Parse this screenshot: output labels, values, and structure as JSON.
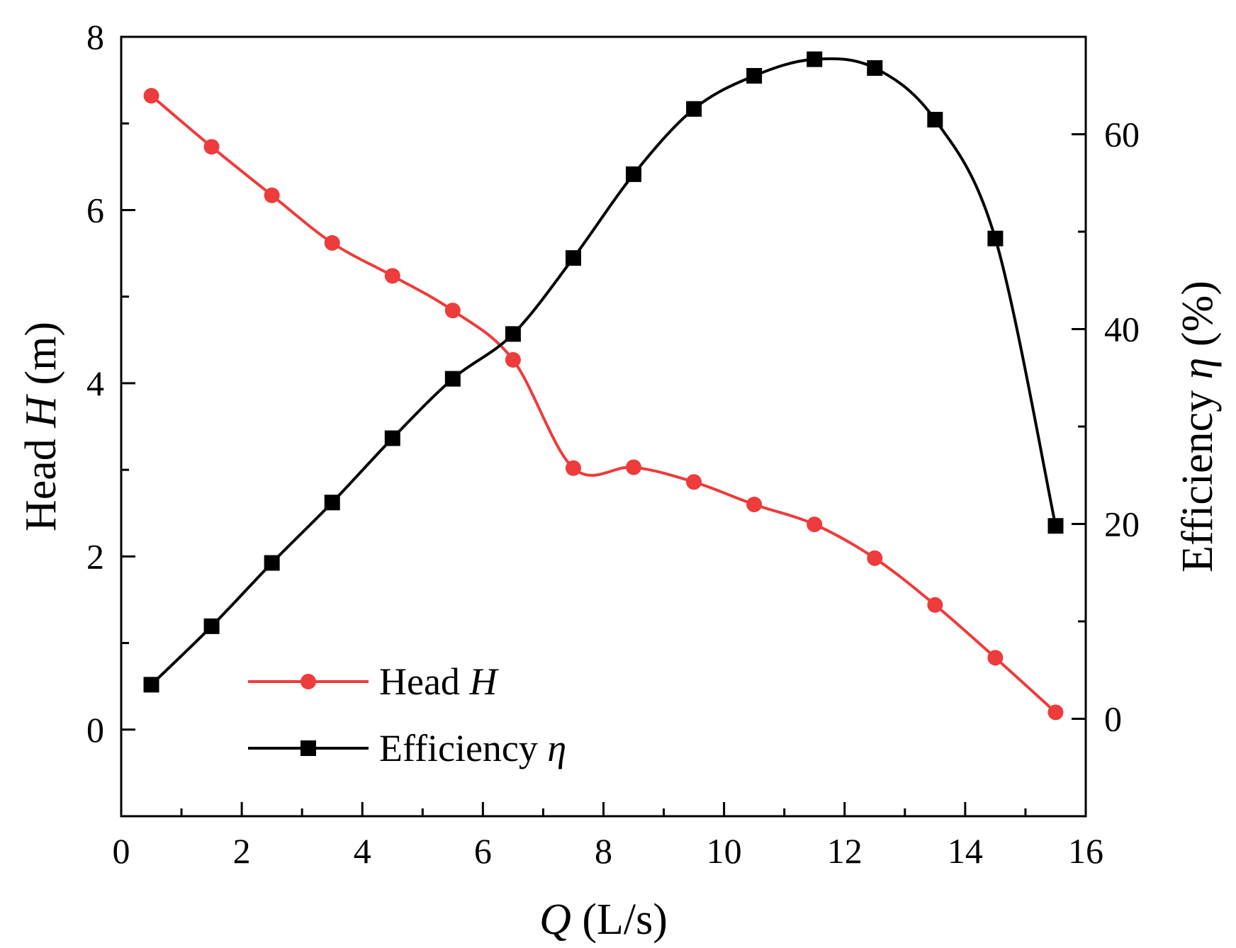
{
  "chart_data": {
    "type": "line",
    "title": "",
    "xlabel": {
      "var": "Q",
      "unit": "(L/s)"
    },
    "ylabel_left": {
      "name": "Head",
      "var": "H",
      "unit": "(m)"
    },
    "ylabel_right": {
      "name": "Efficiency",
      "var": "η",
      "unit": "(%)"
    },
    "xlim": [
      0,
      16
    ],
    "ylim_left": [
      -1,
      8
    ],
    "ylim_right": [
      -10,
      70
    ],
    "x_ticks": [
      0,
      2,
      4,
      6,
      8,
      10,
      12,
      14,
      16
    ],
    "x_tick_labels": [
      "0",
      "2",
      "4",
      "6",
      "8",
      "10",
      "12",
      "14",
      "16"
    ],
    "y_left_ticks": [
      0,
      2,
      4,
      6,
      8
    ],
    "y_left_tick_labels": [
      "0",
      "2",
      "4",
      "6",
      "8"
    ],
    "y_right_ticks": [
      0,
      20,
      40,
      60
    ],
    "y_right_tick_labels": [
      "0",
      "20",
      "40",
      "60"
    ],
    "grid": false,
    "legend_position": "bottom-left",
    "x": [
      0.5,
      1.5,
      2.5,
      3.5,
      4.5,
      5.5,
      6.5,
      7.5,
      8.5,
      9.5,
      10.5,
      11.5,
      12.5,
      13.5,
      14.5,
      15.5
    ],
    "series": [
      {
        "name": "Head",
        "var": "H",
        "axis": "left",
        "marker": "circle",
        "color": "#ee3b3b",
        "values": [
          7.32,
          6.73,
          6.17,
          5.62,
          5.24,
          4.84,
          4.27,
          3.02,
          3.03,
          2.86,
          2.6,
          2.37,
          1.98,
          1.44,
          0.83,
          0.2
        ]
      },
      {
        "name": "Efficiency",
        "var": "η",
        "axis": "right",
        "marker": "square",
        "color": "#000000",
        "values": [
          3.5,
          9.5,
          16.0,
          22.2,
          28.8,
          34.9,
          39.5,
          47.3,
          55.9,
          62.6,
          66.0,
          67.7,
          66.8,
          61.5,
          49.3,
          19.8
        ]
      }
    ]
  }
}
